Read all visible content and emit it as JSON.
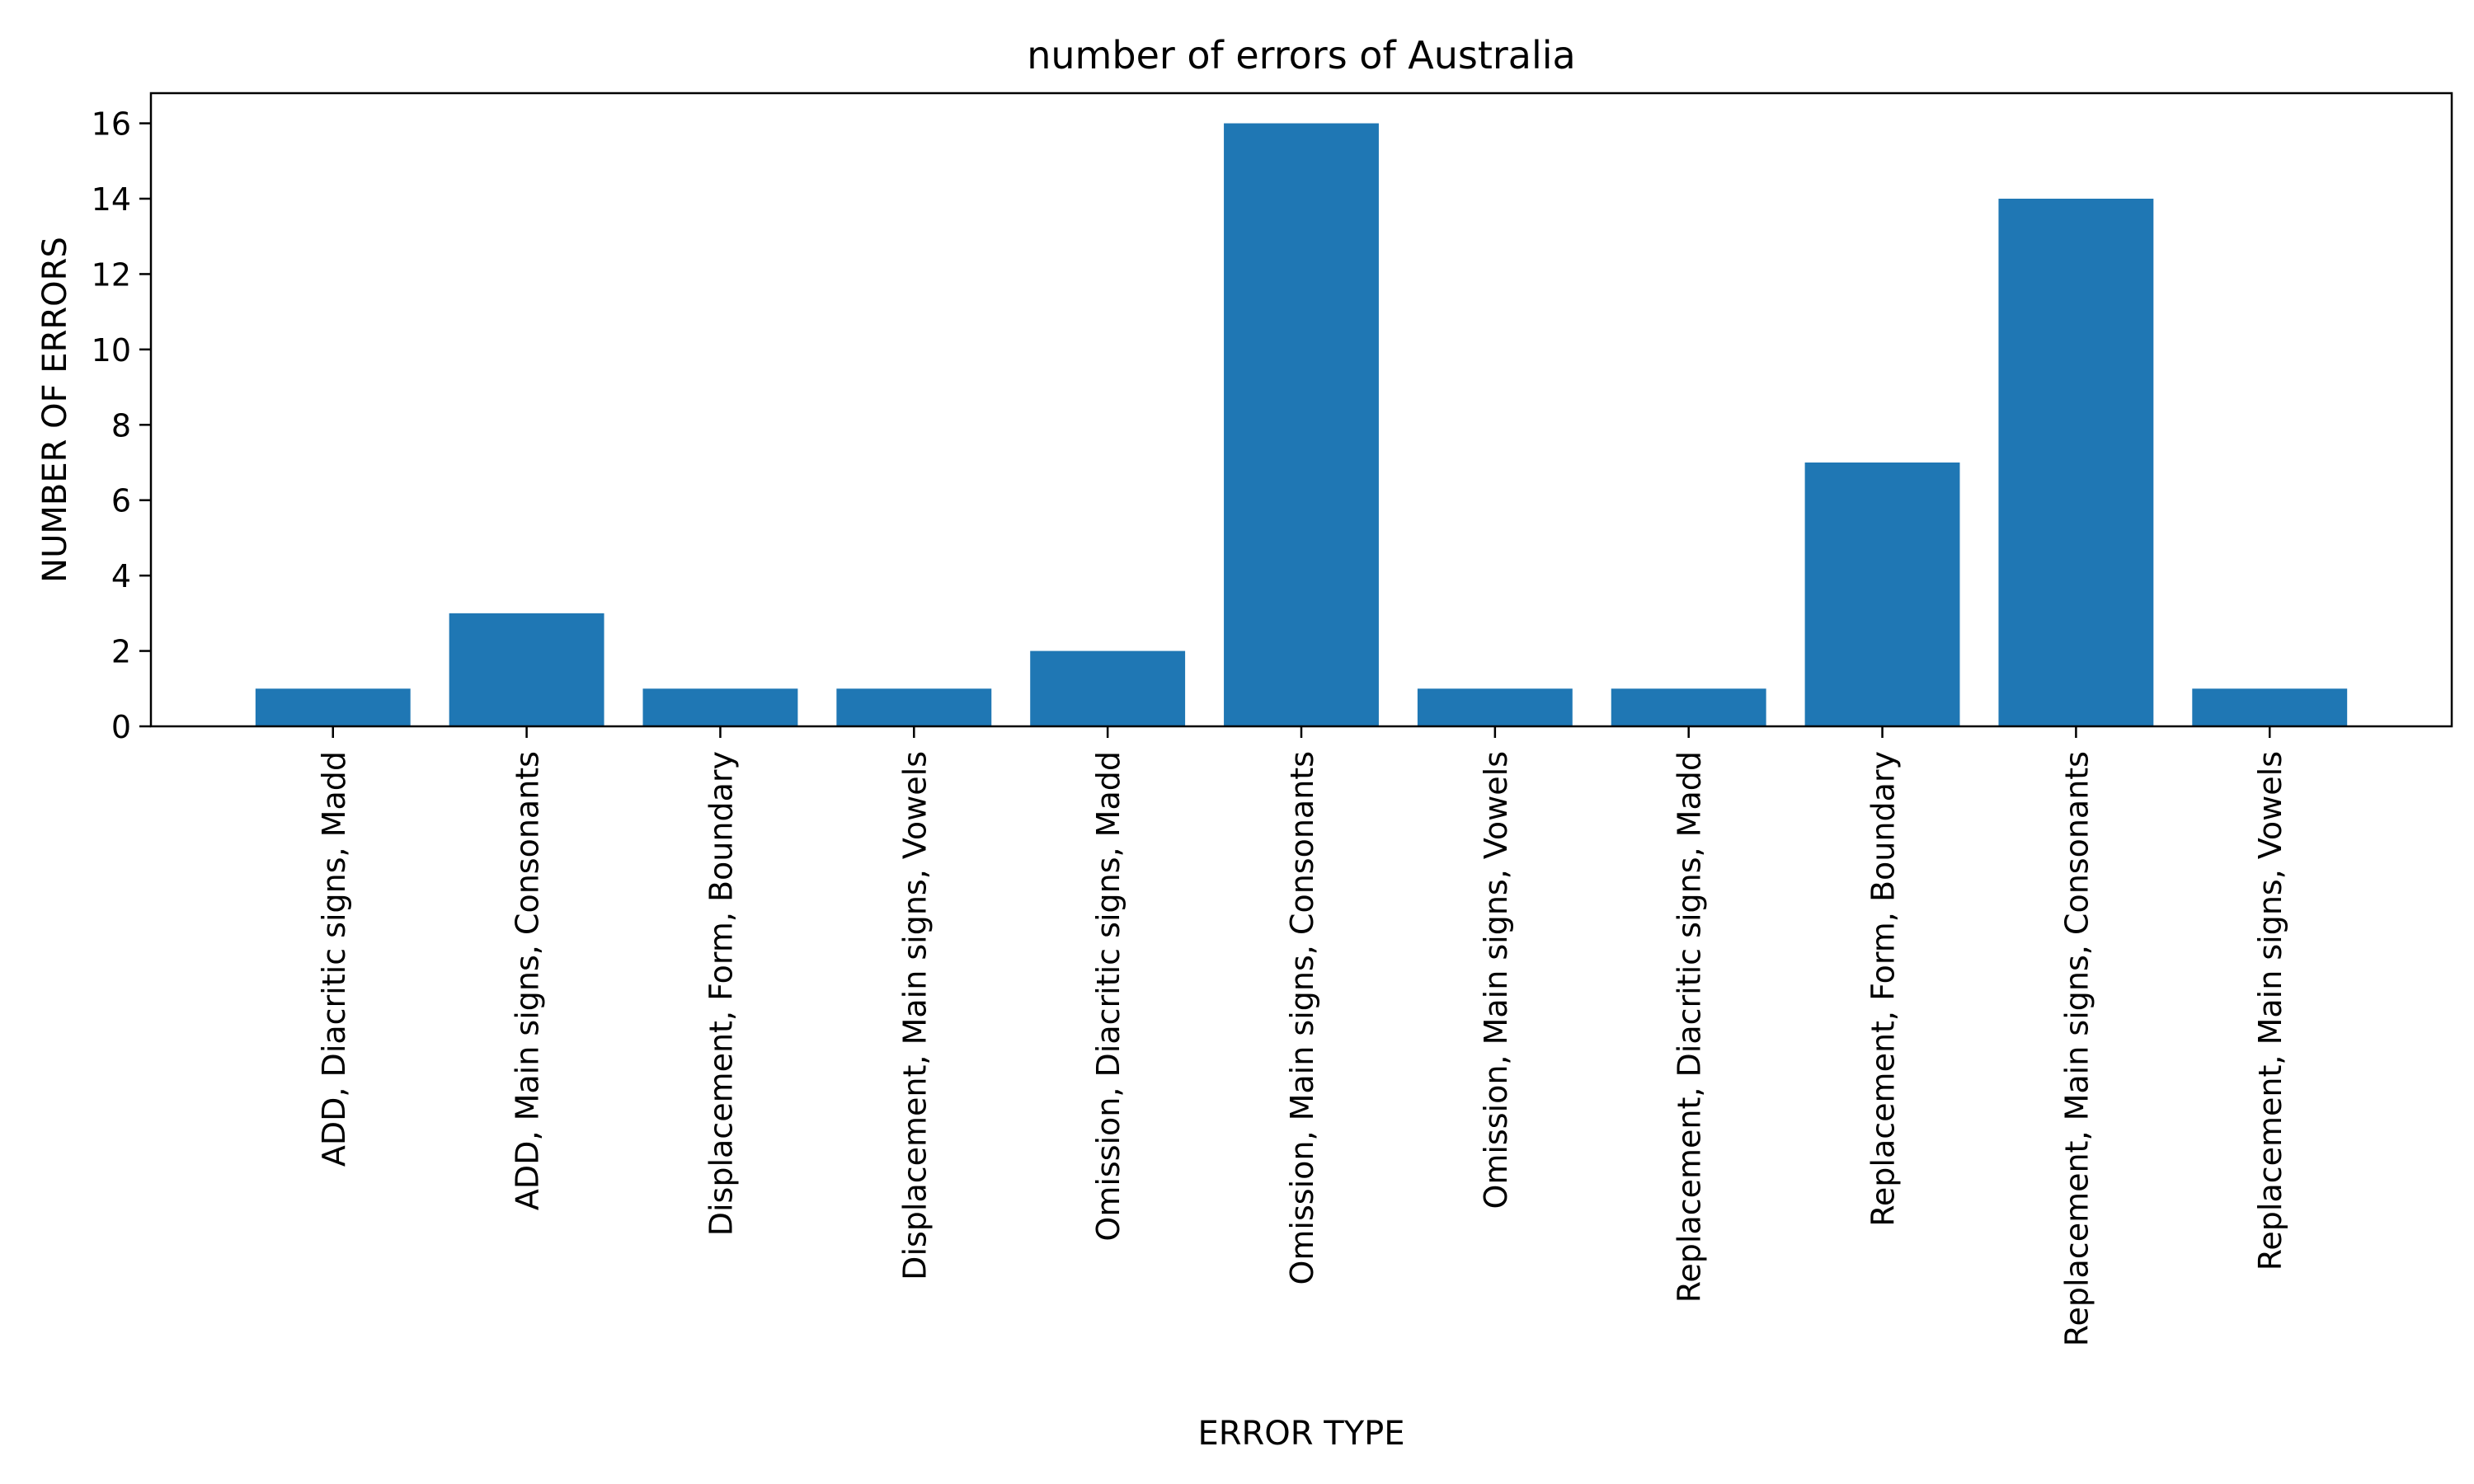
{
  "chart_data": {
    "type": "bar",
    "title": "number of errors of Australia",
    "xlabel": "ERROR TYPE",
    "ylabel": "NUMBER OF ERRORS",
    "categories": [
      "ADD, Diacritic signs, Madd",
      "ADD, Main signs, Consonants",
      "Displacement, Form, Boundary",
      "Displacement, Main signs, Vowels",
      "Omission, Diacritic signs, Madd",
      "Omission, Main signs, Consonants",
      "Omission, Main signs, Vowels",
      "Replacement, Diacritic signs, Madd",
      "Replacement, Form, Boundary",
      "Replacement, Main signs, Consonants",
      "Replacement, Main signs, Vowels"
    ],
    "values": [
      1,
      3,
      1,
      1,
      2,
      16,
      1,
      1,
      7,
      14,
      1
    ],
    "ylim": [
      0,
      16.8
    ],
    "yticks": [
      0,
      2,
      4,
      6,
      8,
      10,
      12,
      14,
      16
    ],
    "grid": false,
    "bar_color": "#1f77b4"
  }
}
